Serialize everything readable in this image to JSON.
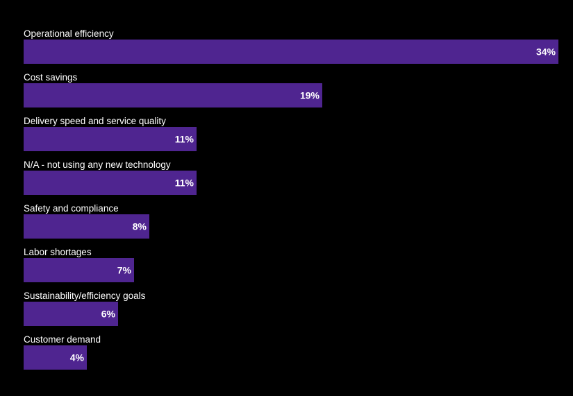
{
  "chart_data": {
    "type": "bar",
    "orientation": "horizontal",
    "categories": [
      "Operational efficiency",
      "Cost savings",
      "Delivery speed and service quality",
      "N/A - not using any new technology",
      "Safety and compliance",
      "Labor shortages",
      "Sustainability/efficiency goals",
      "Customer demand"
    ],
    "values": [
      34,
      19,
      11,
      11,
      8,
      7,
      6,
      4
    ],
    "value_labels": [
      "34%",
      "19%",
      "11%",
      "11%",
      "8%",
      "7%",
      "6%",
      "4%"
    ],
    "xlim": [
      0,
      34
    ],
    "grid": false,
    "bar_color": "#4f2590",
    "background_color": "#000000",
    "text_color": "#ffffff"
  }
}
